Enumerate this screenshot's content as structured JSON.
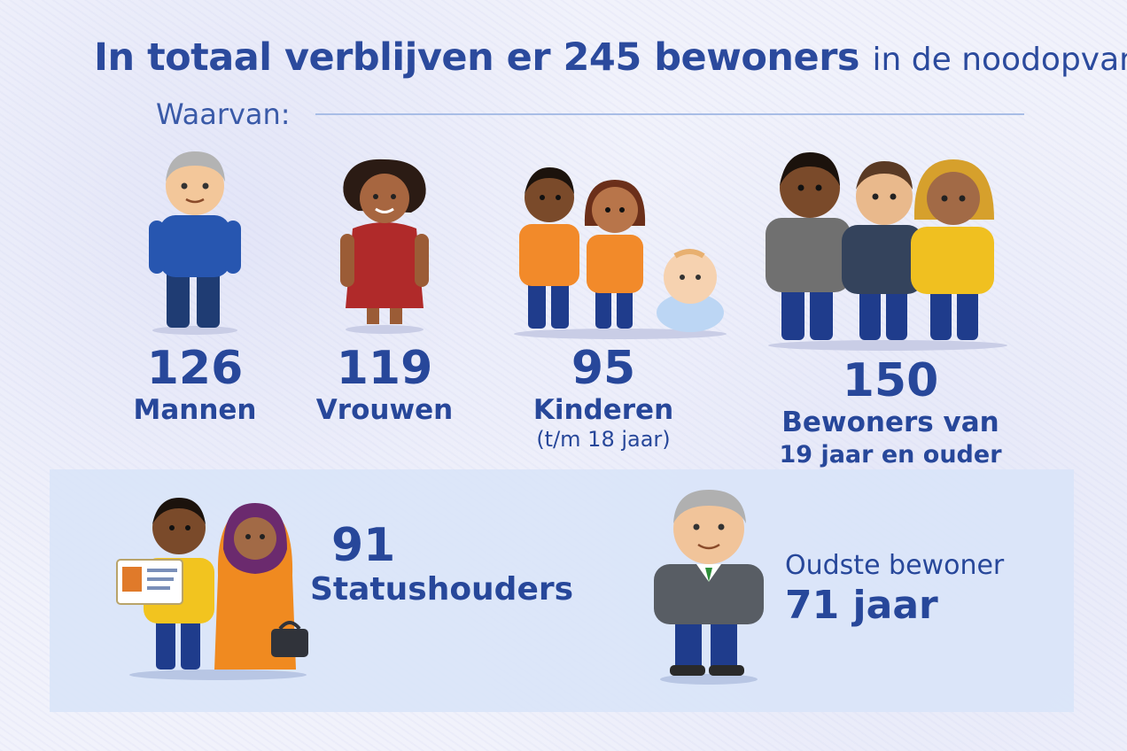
{
  "header": {
    "headline_bold": "In totaal verblijven er 245 bewoners",
    "headline_rest": "in de noodopvang.",
    "subheading": "Waarvan:"
  },
  "stats": {
    "men": {
      "number": "126",
      "label": "Mannen"
    },
    "women": {
      "number": "119",
      "label": "Vrouwen"
    },
    "children": {
      "number": "95",
      "label": "Kinderen",
      "note": "(t/m 18 jaar)"
    },
    "adults": {
      "number": "150",
      "label": "Bewoners van",
      "label_line2": "19 jaar en ouder"
    }
  },
  "highlights": {
    "status_holders": {
      "number": "91",
      "label": "Statushouders"
    },
    "oldest": {
      "label": "Oudste bewoner",
      "value": "71 jaar"
    }
  },
  "colors": {
    "text_blue": "#27479a",
    "panel_blue": "#d9e4f8",
    "divider": "#a8bde6"
  }
}
